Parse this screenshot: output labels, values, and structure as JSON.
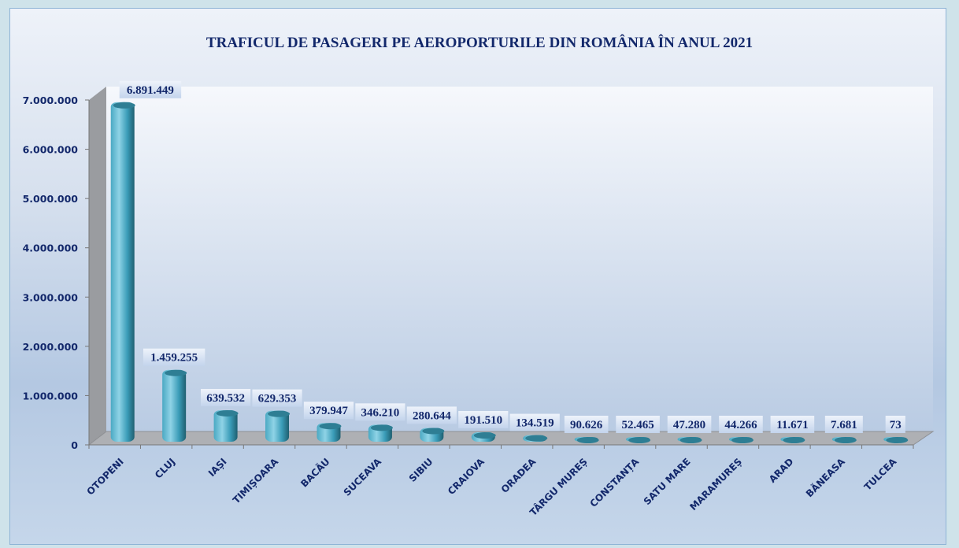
{
  "chart_data": {
    "type": "bar",
    "title": "TRAFICUL DE PASAGERI PE AEROPORTURILE DIN ROMÂNIA ÎN ANUL 2021",
    "categories": [
      "OTOPENI",
      "CLUJ",
      "IAȘI",
      "TIMIȘOARA",
      "BACĂU",
      "SUCEAVA",
      "SIBIU",
      "CRAIOVA",
      "ORADEA",
      "TÂRGU MUREȘ",
      "CONSTANȚA",
      "SATU MARE",
      "MARAMUREȘ",
      "ARAD",
      "BĂNEASA",
      "TULCEA"
    ],
    "values": [
      6891449,
      1459255,
      639532,
      629353,
      379947,
      346210,
      280644,
      191510,
      134519,
      90626,
      52465,
      47280,
      44266,
      11671,
      7681,
      73
    ],
    "data_labels": [
      "6.891.449",
      "1.459.255",
      "639.532",
      "629.353",
      "379.947",
      "346.210",
      "280.644",
      "191.510",
      "134.519",
      "90.626",
      "52.465",
      "47.280",
      "44.266",
      "11.671",
      "7.681",
      "73"
    ],
    "ylim": [
      0,
      7000000
    ],
    "y_ticks": [
      0,
      1000000,
      2000000,
      3000000,
      4000000,
      5000000,
      6000000,
      7000000
    ],
    "y_tick_labels": [
      "0",
      "1.000.000",
      "2.000.000",
      "3.000.000",
      "4.000.000",
      "5.000.000",
      "6.000.000",
      "7.000.000"
    ],
    "xlabel": "",
    "ylabel": "",
    "grid": false,
    "legend": "none",
    "style": "3d-cylinder",
    "colors": {
      "bar": "#3fa6c0",
      "bar_dark": "#2a6f82",
      "title": "#13286b",
      "wall": "#9a9ca0"
    }
  }
}
